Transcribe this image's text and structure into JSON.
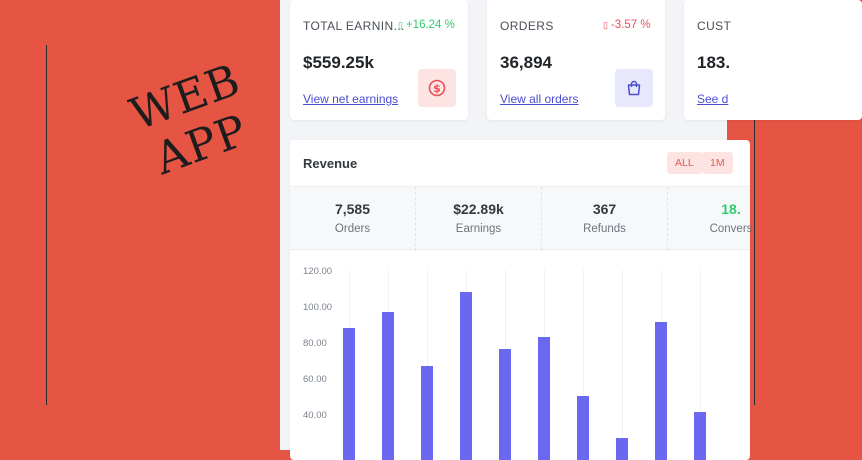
{
  "promo": {
    "line1": "WEB",
    "line2": "APP"
  },
  "cards": [
    {
      "label": "TOTAL EARNIN...",
      "change": "+16.24 %",
      "direction": "up",
      "value": "$559.25k",
      "link": "View net earnings",
      "icon": "dollar-circle-icon"
    },
    {
      "label": "ORDERS",
      "change": "-3.57 %",
      "direction": "down",
      "value": "36,894",
      "link": "View all orders",
      "icon": "shopping-bag-icon"
    },
    {
      "label": "CUST",
      "value": "183.",
      "link": "See d"
    }
  ],
  "revenue": {
    "title": "Revenue",
    "filters": [
      "ALL",
      "1M"
    ],
    "stats": [
      {
        "value": "7,585",
        "label": "Orders"
      },
      {
        "value": "$22.89k",
        "label": "Earnings"
      },
      {
        "value": "367",
        "label": "Refunds"
      },
      {
        "value": "18.",
        "label": "Convers"
      }
    ]
  },
  "colors": {
    "accent_red": "#e65444",
    "bar": "#6a67f0",
    "positive": "#2fcb70",
    "negative": "#e8505b",
    "link": "#4b4ed1"
  },
  "chart_data": {
    "type": "bar",
    "yticks": [
      "120.00",
      "100.00",
      "80.00",
      "60.00",
      "40.00"
    ],
    "ylim": [
      0,
      120
    ],
    "values": [
      89,
      98,
      68,
      109,
      77,
      84,
      51,
      28,
      92,
      42
    ]
  }
}
